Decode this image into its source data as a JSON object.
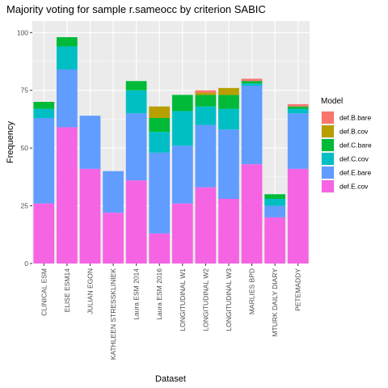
{
  "chart_data": {
    "type": "bar",
    "stacked": true,
    "title": "Majority voting for sample r.sameocc by criterion SABIC",
    "xlabel": "Dataset",
    "ylabel": "Frequency",
    "ylim": [
      0,
      105
    ],
    "yticks": [
      0,
      25,
      50,
      75,
      100
    ],
    "grid": true,
    "legend_position": "right",
    "legend_title": "Model",
    "categories": [
      "CLINICAL ESM",
      "ELISE ESM14",
      "JULIAN EGON",
      "KATHLEEN STRESSKLINIEK",
      "Laura ESM 2014",
      "Laura ESM 2016",
      "LONGITUDINAL W1",
      "LONGITUDINAL W2",
      "LONGITUDINAL W3",
      "MARLIES BPD",
      "MTURK DAILY DIARY",
      "PETEMADDY"
    ],
    "series": [
      {
        "name": "def.E.cov",
        "color": "#F564E3",
        "values": [
          26,
          59,
          41,
          22,
          36,
          13,
          26,
          33,
          28,
          43,
          20,
          41
        ]
      },
      {
        "name": "def.E.bare",
        "color": "#619CFF",
        "values": [
          37,
          25,
          23,
          18,
          29,
          35,
          25,
          27,
          30,
          34,
          5,
          24
        ]
      },
      {
        "name": "def.C.cov",
        "color": "#00BFC4",
        "values": [
          4,
          10,
          0,
          0,
          10,
          9,
          15,
          8,
          9,
          1,
          3,
          2
        ]
      },
      {
        "name": "def.C.bare",
        "color": "#00BA38",
        "values": [
          3,
          4,
          0,
          0,
          4,
          6,
          7,
          5,
          6,
          1,
          2,
          1
        ]
      },
      {
        "name": "def.B.cov",
        "color": "#B79F00",
        "values": [
          0,
          0,
          0,
          0,
          0,
          5,
          0,
          1,
          3,
          0,
          0,
          0
        ]
      },
      {
        "name": "def.B.bare",
        "color": "#F8766D",
        "values": [
          0,
          0,
          0,
          0,
          0,
          0,
          0,
          1,
          0,
          1,
          0,
          1
        ]
      }
    ],
    "legend_order": [
      "def.B.bare",
      "def.B.cov",
      "def.C.bare",
      "def.C.cov",
      "def.E.bare",
      "def.E.cov"
    ],
    "panel_background": "#EBEBEB",
    "grid_color": "#FFFFFF"
  }
}
